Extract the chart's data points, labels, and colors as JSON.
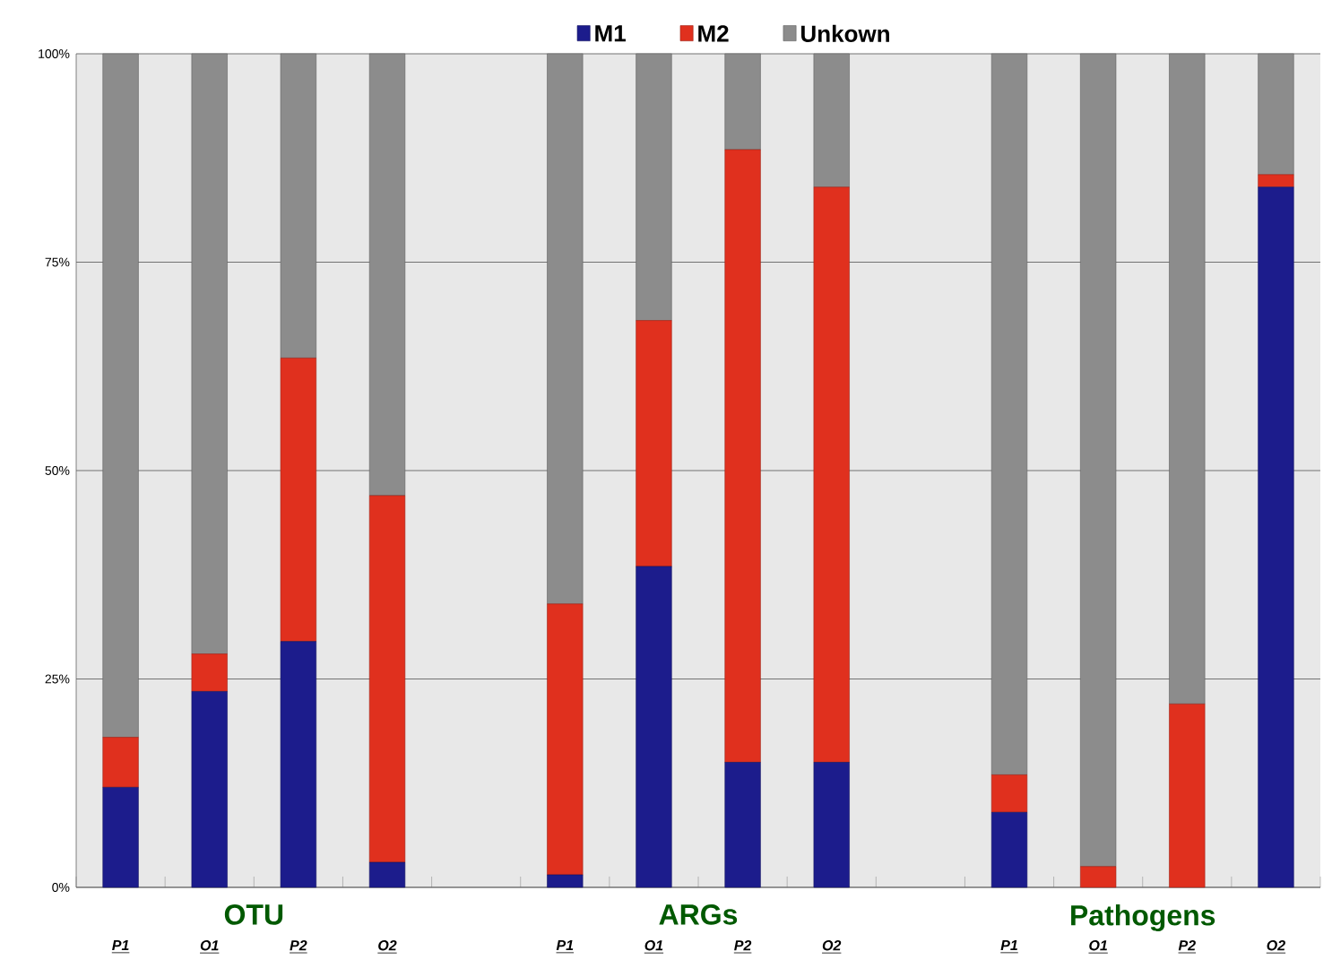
{
  "chart_data": {
    "type": "bar",
    "stacked": true,
    "categories": [
      "P1",
      "O1",
      "P2",
      "O2",
      null,
      "P1",
      "O1",
      "P2",
      "O2",
      null,
      "P1",
      "O1",
      "P2",
      "O2"
    ],
    "series": [
      {
        "name": "M1",
        "color": "#1c1c8c",
        "values": [
          12,
          23.5,
          29.5,
          3,
          null,
          1.5,
          38.5,
          15,
          15,
          null,
          9,
          0,
          0,
          84
        ]
      },
      {
        "name": "M2",
        "color": "#e0301e",
        "values": [
          6,
          4.5,
          34,
          44,
          null,
          32.5,
          29.5,
          73.5,
          69,
          null,
          4.5,
          2.5,
          22,
          1.5
        ]
      },
      {
        "name": "Unkown",
        "color": "#8c8c8c",
        "values": [
          82,
          72,
          36.5,
          53,
          null,
          66,
          32,
          11.5,
          16,
          null,
          86.5,
          97.5,
          78,
          14.5
        ]
      }
    ],
    "ylim": [
      0,
      100
    ],
    "yticks": [
      {
        "value": 0,
        "label": "0%"
      },
      {
        "value": 25,
        "label": "25%"
      },
      {
        "value": 50,
        "label": "50%"
      },
      {
        "value": 75,
        "label": "75%"
      },
      {
        "value": 100,
        "label": "100%"
      }
    ],
    "grid": "y",
    "legend": "top",
    "annotations": [
      "OTU",
      "ARGs",
      "Pathogens"
    ]
  }
}
